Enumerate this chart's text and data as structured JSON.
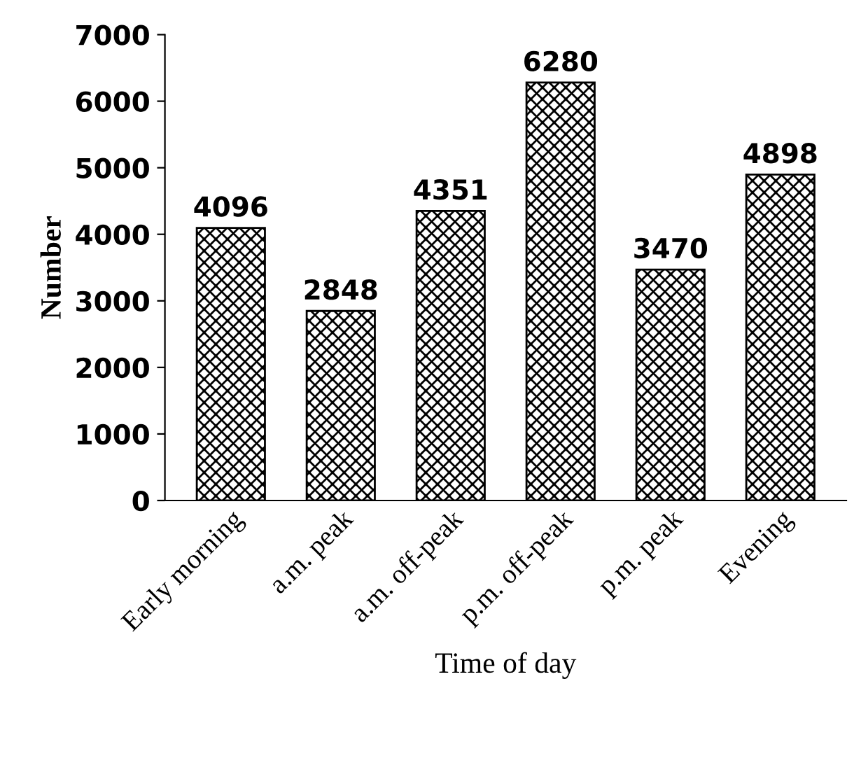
{
  "chart_data": {
    "type": "bar",
    "xlabel": "Time of day",
    "ylabel": "Number",
    "categories": [
      "Early morning",
      "a.m. peak",
      "a.m. off-peak",
      "p.m. off-peak",
      "p.m. peak",
      "Evening"
    ],
    "values": [
      4096,
      2848,
      4351,
      6280,
      3470,
      4898
    ],
    "color": "#000000",
    "ylim": [
      0,
      7000
    ],
    "yticks": [
      0,
      1000,
      2000,
      3000,
      4000,
      5000,
      6000,
      7000
    ],
    "data_labels": true,
    "grid": false,
    "legend": false
  }
}
